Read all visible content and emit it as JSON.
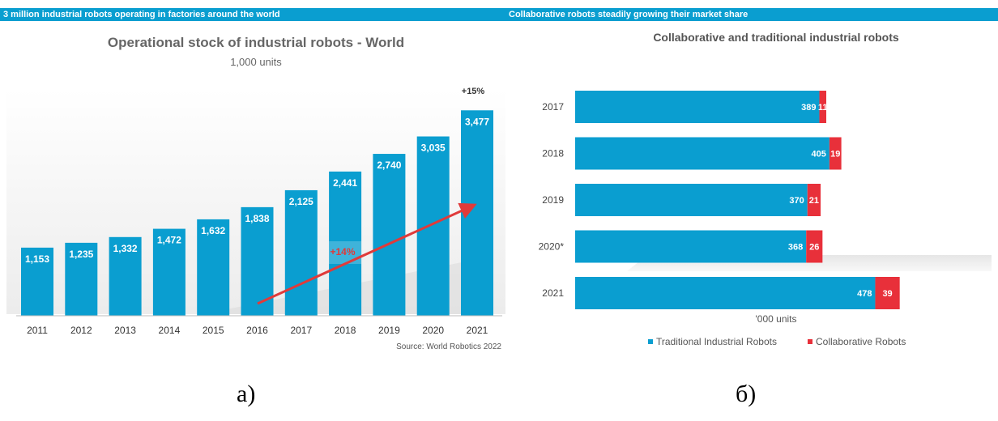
{
  "left": {
    "banner": "3 million industrial robots operating in factories around the world",
    "source": "Source: World Robotics 2022",
    "growth_label": "+14%",
    "top_label": "+15%"
  },
  "right": {
    "banner": "Collaborative robots steadily growing their market share",
    "unit_label": "'000 units"
  },
  "figure_labels": {
    "left": "а)",
    "right": "б)"
  },
  "colors": {
    "bar": "#0a9ed0",
    "collab": "#e8303a",
    "arrow": "#e03a3a",
    "banner": "#0a9ed0"
  },
  "chart_data": [
    {
      "type": "bar",
      "title": "Operational stock of industrial robots - World",
      "subtitle": "1,000 units",
      "categories": [
        "2011",
        "2012",
        "2013",
        "2014",
        "2015",
        "2016",
        "2017",
        "2018",
        "2019",
        "2020",
        "2021"
      ],
      "values": [
        1153,
        1235,
        1332,
        1472,
        1632,
        1838,
        2125,
        2441,
        2740,
        3035,
        3477
      ],
      "value_labels": [
        "1,153",
        "1,235",
        "1,332",
        "1,472",
        "1,632",
        "1,838",
        "2,125",
        "2,441",
        "2,740",
        "3,035",
        "3,477"
      ],
      "ylim": [
        0,
        3700
      ],
      "grid": false
    },
    {
      "type": "bar",
      "orientation": "horizontal",
      "stacked": true,
      "title": "Collaborative and traditional industrial robots",
      "xlabel": "'000 units",
      "categories": [
        "2017",
        "2018",
        "2019",
        "2020*",
        "2021"
      ],
      "series": [
        {
          "name": "Traditional Industrial Robots",
          "values": [
            389,
            405,
            370,
            368,
            478
          ]
        },
        {
          "name": "Collaborative Robots",
          "values": [
            11,
            19,
            21,
            26,
            39
          ]
        }
      ],
      "legend": "bottom",
      "grid": false
    }
  ]
}
